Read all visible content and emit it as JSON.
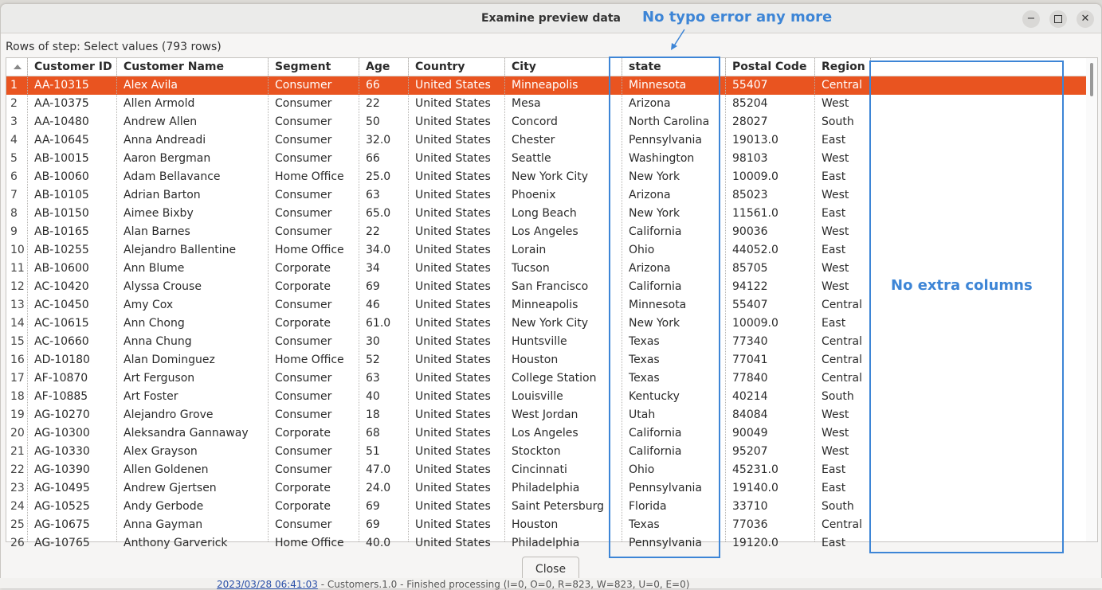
{
  "window": {
    "title": "Examine preview data",
    "minimize_glyph": "−",
    "close_glyph": "✕"
  },
  "caption": "Rows of step: Select values (793 rows)",
  "table": {
    "columns": [
      "Customer ID",
      "Customer Name",
      "Segment",
      "Age",
      "Country",
      "City",
      "state",
      "Postal Code",
      "Region"
    ],
    "rows": [
      [
        "1",
        "AA-10315",
        "Alex Avila",
        "Consumer",
        "66",
        "United States",
        "Minneapolis",
        "Minnesota",
        "55407",
        "Central"
      ],
      [
        "2",
        "AA-10375",
        "Allen Armold",
        "Consumer",
        "22",
        "United States",
        "Mesa",
        "Arizona",
        "85204",
        "West"
      ],
      [
        "3",
        "AA-10480",
        "Andrew Allen",
        "Consumer",
        "50",
        "United States",
        "Concord",
        "North Carolina",
        "28027",
        "South"
      ],
      [
        "4",
        "AA-10645",
        "Anna Andreadi",
        "Consumer",
        "32.0",
        "United States",
        "Chester",
        "Pennsylvania",
        "19013.0",
        "East"
      ],
      [
        "5",
        "AB-10015",
        "Aaron Bergman",
        "Consumer",
        "66",
        "United States",
        "Seattle",
        "Washington",
        "98103",
        "West"
      ],
      [
        "6",
        "AB-10060",
        "Adam Bellavance",
        "Home Office",
        "25.0",
        "United States",
        "New York City",
        "New York",
        "10009.0",
        "East"
      ],
      [
        "7",
        "AB-10105",
        "Adrian Barton",
        "Consumer",
        "63",
        "United States",
        "Phoenix",
        "Arizona",
        "85023",
        "West"
      ],
      [
        "8",
        "AB-10150",
        "Aimee Bixby",
        "Consumer",
        "65.0",
        "United States",
        "Long Beach",
        "New York",
        "11561.0",
        "East"
      ],
      [
        "9",
        "AB-10165",
        "Alan Barnes",
        "Consumer",
        "22",
        "United States",
        "Los Angeles",
        "California",
        "90036",
        "West"
      ],
      [
        "10",
        "AB-10255",
        "Alejandro Ballentine",
        "Home Office",
        "34.0",
        "United States",
        "Lorain",
        "Ohio",
        "44052.0",
        "East"
      ],
      [
        "11",
        "AB-10600",
        "Ann Blume",
        "Corporate",
        "34",
        "United States",
        "Tucson",
        "Arizona",
        "85705",
        "West"
      ],
      [
        "12",
        "AC-10420",
        "Alyssa Crouse",
        "Corporate",
        "69",
        "United States",
        "San Francisco",
        "California",
        "94122",
        "West"
      ],
      [
        "13",
        "AC-10450",
        "Amy Cox",
        "Consumer",
        "46",
        "United States",
        "Minneapolis",
        "Minnesota",
        "55407",
        "Central"
      ],
      [
        "14",
        "AC-10615",
        "Ann Chong",
        "Corporate",
        "61.0",
        "United States",
        "New York City",
        "New York",
        "10009.0",
        "East"
      ],
      [
        "15",
        "AC-10660",
        "Anna Chung",
        "Consumer",
        "30",
        "United States",
        "Huntsville",
        "Texas",
        "77340",
        "Central"
      ],
      [
        "16",
        "AD-10180",
        "Alan Dominguez",
        "Home Office",
        "52",
        "United States",
        "Houston",
        "Texas",
        "77041",
        "Central"
      ],
      [
        "17",
        "AF-10870",
        "Art Ferguson",
        "Consumer",
        "63",
        "United States",
        "College Station",
        "Texas",
        "77840",
        "Central"
      ],
      [
        "18",
        "AF-10885",
        "Art Foster",
        "Consumer",
        "40",
        "United States",
        "Louisville",
        "Kentucky",
        "40214",
        "South"
      ],
      [
        "19",
        "AG-10270",
        "Alejandro Grove",
        "Consumer",
        "18",
        "United States",
        "West Jordan",
        "Utah",
        "84084",
        "West"
      ],
      [
        "20",
        "AG-10300",
        "Aleksandra Gannaway",
        "Corporate",
        "68",
        "United States",
        "Los Angeles",
        "California",
        "90049",
        "West"
      ],
      [
        "21",
        "AG-10330",
        "Alex Grayson",
        "Consumer",
        "51",
        "United States",
        "Stockton",
        "California",
        "95207",
        "West"
      ],
      [
        "22",
        "AG-10390",
        "Allen Goldenen",
        "Consumer",
        "47.0",
        "United States",
        "Cincinnati",
        "Ohio",
        "45231.0",
        "East"
      ],
      [
        "23",
        "AG-10495",
        "Andrew Gjertsen",
        "Corporate",
        "24.0",
        "United States",
        "Philadelphia",
        "Pennsylvania",
        "19140.0",
        "East"
      ],
      [
        "24",
        "AG-10525",
        "Andy Gerbode",
        "Corporate",
        "69",
        "United States",
        "Saint Petersburg",
        "Florida",
        "33710",
        "South"
      ],
      [
        "25",
        "AG-10675",
        "Anna Gayman",
        "Consumer",
        "69",
        "United States",
        "Houston",
        "Texas",
        "77036",
        "Central"
      ],
      [
        "26",
        "AG-10765",
        "Anthony Garverick",
        "Home Office",
        "40.0",
        "United States",
        "Philadelphia",
        "Pennsylvania",
        "19120.0",
        "East"
      ]
    ],
    "selected_row": 1
  },
  "annotations": {
    "typo_note": "No typo error any more",
    "extra_note": "No extra columns",
    "color": "#3d85d6"
  },
  "buttons": {
    "close_label": "Close"
  },
  "background_log": {
    "timestamp": "2023/03/28 06:41:03",
    "message": " - Customers.1.0 - Finished processing (I=0, O=0, R=823, W=823, U=0, E=0)"
  },
  "colors": {
    "selection": "#e95420"
  }
}
